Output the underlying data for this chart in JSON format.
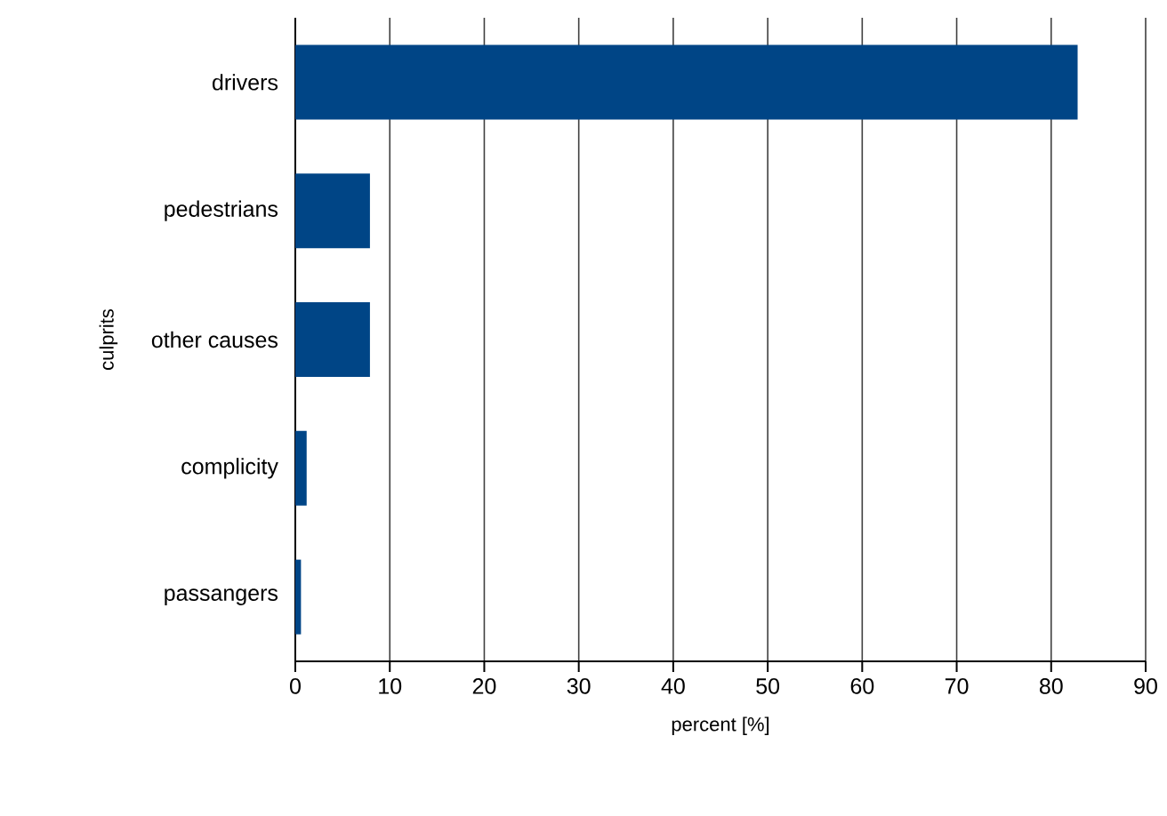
{
  "chart_data": {
    "type": "bar",
    "orientation": "horizontal",
    "xlabel": "percent [%]",
    "ylabel": "culprits",
    "categories": [
      "drivers",
      "pedestrians",
      "other causes",
      "complicity",
      "passangers"
    ],
    "values": [
      82.8,
      7.9,
      7.9,
      1.2,
      0.6
    ],
    "color": "#004586",
    "xlim": [
      0,
      90
    ],
    "xticks": [
      0,
      10,
      20,
      30,
      40,
      50,
      60,
      70,
      80,
      90
    ],
    "grid": "x"
  }
}
